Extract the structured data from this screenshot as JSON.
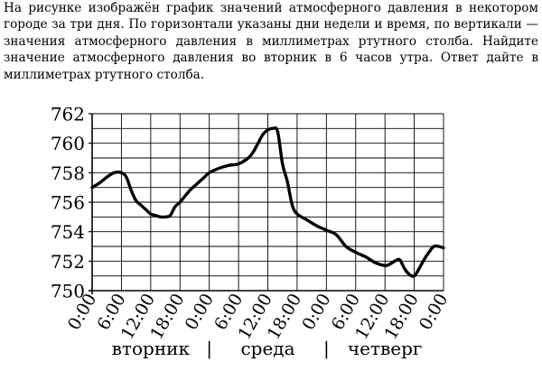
{
  "problem": {
    "text": "На рисунке изображён график значений атмосферного давления в некотором городе за три дня. По горизонтали указаны дни недели и время, по вертикали — значения атмосферного давления в миллиметрах ртутного столба. Найдите значение атмосферного давления во вторник в 6 часов утра. Ответ дайте в миллиметрах ртутного столба."
  },
  "chart_data": {
    "type": "line",
    "x_tick_labels": [
      "0:00",
      "6:00",
      "12:00",
      "18:00",
      "0:00",
      "6:00",
      "12:00",
      "18:00",
      "0:00",
      "6:00",
      "12:00",
      "18:00",
      "0:00"
    ],
    "y_tick_labels": [
      "750",
      "752",
      "754",
      "756",
      "758",
      "760",
      "762"
    ],
    "day_labels": [
      "вторник",
      "среда",
      "четверг"
    ],
    "day_separator": "|",
    "xlim": [
      0,
      72
    ],
    "ylim": [
      750,
      762
    ],
    "grid": true,
    "x_unit_note": "hours since Tuesday 0:00",
    "series": [
      {
        "name": "",
        "x": [
          0,
          1.5,
          3,
          4.5,
          6,
          7,
          8,
          9,
          10,
          11,
          12,
          13,
          14,
          15,
          16,
          17,
          18,
          20,
          21,
          22,
          23,
          24,
          26,
          28,
          30,
          32,
          33,
          34,
          35,
          36,
          37,
          38,
          39,
          40,
          41,
          42,
          44,
          46,
          48,
          50,
          52,
          54,
          56,
          58,
          60,
          61,
          62,
          63,
          64,
          65,
          66,
          67,
          68,
          69,
          70,
          71,
          72
        ],
        "values": [
          757.0,
          757.3,
          757.7,
          758.0,
          758.0,
          757.7,
          756.8,
          756.1,
          755.8,
          755.5,
          755.2,
          755.1,
          755.0,
          755.0,
          755.1,
          755.7,
          756.0,
          756.8,
          757.1,
          757.4,
          757.7,
          758.0,
          758.3,
          758.5,
          758.6,
          759.0,
          759.4,
          760.0,
          760.6,
          760.9,
          761.0,
          760.8,
          758.6,
          757.4,
          755.8,
          755.2,
          754.8,
          754.4,
          754.1,
          753.8,
          753.0,
          752.6,
          752.3,
          751.9,
          751.7,
          751.8,
          752.0,
          752.1,
          751.5,
          751.1,
          751.0,
          751.5,
          752.1,
          752.6,
          753.0,
          753.0,
          752.9
        ]
      }
    ]
  }
}
